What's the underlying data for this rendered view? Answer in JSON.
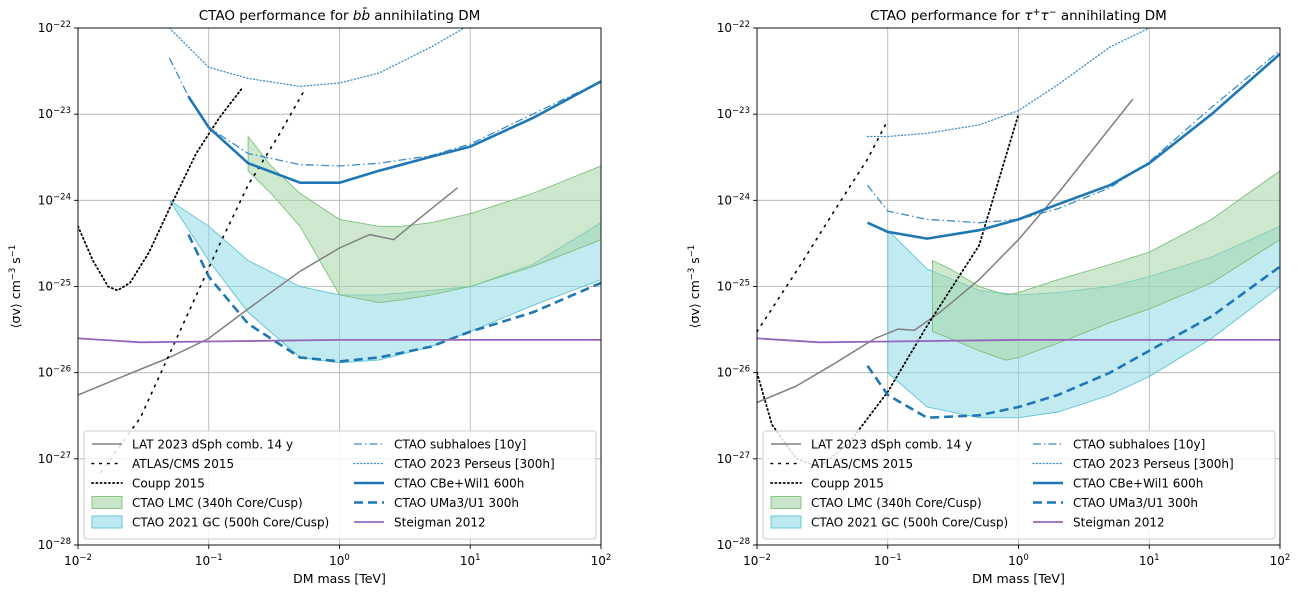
{
  "chart_data": [
    {
      "type": "line",
      "title_text": "CTAO performance for ",
      "title_particle": "b",
      "title_particle_bar": "b̄",
      "title_suffix": " annihilating DM",
      "xlabel": "DM mass [TeV]",
      "ylabel": "⟨σv⟩ cm",
      "ylabel_exp1": "−3",
      "ylabel_mid": " s",
      "ylabel_exp2": "−1",
      "x_scale": "log",
      "y_scale": "log",
      "xlim": [
        0.01,
        100
      ],
      "ylim": [
        1e-28,
        1e-22
      ],
      "x_ticks": [
        {
          "base": "10",
          "exp": "−2"
        },
        {
          "base": "10",
          "exp": "−1"
        },
        {
          "base": "10",
          "exp": "0"
        },
        {
          "base": "10",
          "exp": "1"
        },
        {
          "base": "10",
          "exp": "2"
        }
      ],
      "y_ticks": [
        {
          "base": "10",
          "exp": "−28"
        },
        {
          "base": "10",
          "exp": "−27"
        },
        {
          "base": "10",
          "exp": "−26"
        },
        {
          "base": "10",
          "exp": "−25"
        },
        {
          "base": "10",
          "exp": "−24"
        },
        {
          "base": "10",
          "exp": "−23"
        },
        {
          "base": "10",
          "exp": "−22"
        }
      ],
      "grid": true,
      "legend_position": "lower-left",
      "bands": [
        {
          "name": "CTAO 2021 GC (500h Core/Cusp)",
          "color": "#8fd8e6",
          "edge": "#5ec3d6",
          "x": [
            0.05,
            0.1,
            0.2,
            0.5,
            1,
            2,
            5,
            10,
            30,
            100
          ],
          "upper": [
            1e-24,
            5e-25,
            2e-25,
            1e-25,
            8e-26,
            8e-26,
            9e-26,
            1e-25,
            1.8e-25,
            5.5e-25
          ],
          "lower": [
            1e-24,
            2e-25,
            5e-26,
            1.5e-26,
            1.3e-26,
            1.4e-26,
            2e-26,
            3e-26,
            6e-26,
            1.2e-25
          ]
        },
        {
          "name": "CTAO LMC (340h Core/Cusp)",
          "color": "#a6d6a6",
          "edge": "#7cc07c",
          "x": [
            0.2,
            0.3,
            0.5,
            1,
            2,
            3,
            5,
            10,
            30,
            100
          ],
          "upper": [
            5.5e-24,
            2.5e-24,
            1.2e-24,
            6e-25,
            5e-25,
            5e-25,
            5.5e-25,
            7e-25,
            1.2e-24,
            2.5e-24
          ],
          "lower": [
            2.2e-24,
            1.2e-24,
            5e-25,
            8e-26,
            6.5e-26,
            7e-26,
            8e-26,
            1e-25,
            1.7e-25,
            3.5e-25
          ]
        }
      ],
      "series": [
        {
          "name": "LAT 2023 dSph comb. 14 y",
          "color": "#808080",
          "style": "solid",
          "width": 1.5,
          "x": [
            0.01,
            0.02,
            0.05,
            0.1,
            0.2,
            0.5,
            1,
            1.7,
            2.6,
            4,
            8
          ],
          "y": [
            5.5e-27,
            8.5e-27,
            1.5e-26,
            2.5e-26,
            5.5e-26,
            1.5e-25,
            2.8e-25,
            4e-25,
            3.5e-25,
            6e-25,
            1.4e-24
          ]
        },
        {
          "name": "ATLAS/CMS 2015",
          "color": "#000000",
          "style": "dotted",
          "width": 1.6,
          "x": [
            0.015,
            0.03,
            0.07,
            0.12,
            0.2,
            0.35,
            0.55
          ],
          "y": [
            7e-28,
            3e-27,
            5e-26,
            3e-25,
            1.5e-24,
            6e-24,
            2e-23
          ]
        },
        {
          "name": "Coupp 2015",
          "color": "#000000",
          "style": "densedot",
          "width": 1.8,
          "x": [
            0.01,
            0.013,
            0.017,
            0.02,
            0.025,
            0.035,
            0.05,
            0.08,
            0.12,
            0.18
          ],
          "y": [
            5e-25,
            2e-25,
            1e-25,
            9e-26,
            1.1e-25,
            2.5e-25,
            8e-25,
            3.5e-24,
            9e-24,
            2e-23
          ]
        },
        {
          "name": "CTAO subhaloes [10y]",
          "color": "#3a8cc8",
          "style": "dashdot",
          "width": 1.3,
          "x": [
            0.05,
            0.07,
            0.1,
            0.2,
            0.5,
            1,
            2,
            5,
            10,
            30,
            100
          ],
          "y": [
            4.5e-23,
            1.6e-23,
            7e-24,
            3.5e-24,
            2.6e-24,
            2.5e-24,
            2.7e-24,
            3.3e-24,
            4.5e-24,
            1e-23,
            2.4e-23
          ]
        },
        {
          "name": "CTAO 2023 Perseus [300h]",
          "color": "#3a8cc8",
          "style": "finedot",
          "width": 1.3,
          "x": [
            0.05,
            0.1,
            0.2,
            0.5,
            0.7,
            1,
            2,
            5,
            10
          ],
          "y": [
            1e-22,
            3.5e-23,
            2.6e-23,
            2.1e-23,
            2.2e-23,
            2.3e-23,
            3e-23,
            6e-23,
            1.1e-22
          ]
        },
        {
          "name": "CTAO CBe+Wil1 600h",
          "color": "#1f77b4",
          "style": "solid",
          "width": 2.6,
          "x": [
            0.07,
            0.1,
            0.2,
            0.5,
            1,
            2,
            5,
            10,
            30,
            100
          ],
          "y": [
            1.6e-23,
            7e-24,
            2.7e-24,
            1.6e-24,
            1.6e-24,
            2.2e-24,
            3.2e-24,
            4.2e-24,
            9e-24,
            2.4e-23
          ]
        },
        {
          "name": "CTAO UMa3/U1 300h",
          "color": "#1f77b4",
          "style": "dashed",
          "width": 2.6,
          "x": [
            0.07,
            0.1,
            0.2,
            0.5,
            1,
            2,
            5,
            10,
            30,
            100
          ],
          "y": [
            4e-25,
            1.3e-25,
            3.7e-26,
            1.5e-26,
            1.35e-26,
            1.5e-26,
            2e-26,
            3e-26,
            5e-26,
            1.1e-25
          ]
        },
        {
          "name": "Steigman 2012",
          "color": "#9467bd",
          "style": "solid",
          "width": 1.8,
          "x": [
            0.01,
            0.03,
            0.1,
            1,
            10,
            100
          ],
          "y": [
            2.5e-26,
            2.25e-26,
            2.3e-26,
            2.4e-26,
            2.4e-26,
            2.4e-26
          ]
        }
      ]
    },
    {
      "type": "line",
      "title_text": "CTAO performance for ",
      "title_particle": "τ",
      "title_particle_sup1": "+",
      "title_particle2": "τ",
      "title_particle_sup2": "−",
      "title_suffix": " annihilating DM",
      "xlabel": "DM mass [TeV]",
      "ylabel": "⟨σv⟩ cm",
      "ylabel_exp1": "−3",
      "ylabel_mid": " s",
      "ylabel_exp2": "−1",
      "x_scale": "log",
      "y_scale": "log",
      "xlim": [
        0.01,
        100
      ],
      "ylim": [
        1e-28,
        1e-22
      ],
      "x_ticks": [
        {
          "base": "10",
          "exp": "−2"
        },
        {
          "base": "10",
          "exp": "−1"
        },
        {
          "base": "10",
          "exp": "0"
        },
        {
          "base": "10",
          "exp": "1"
        },
        {
          "base": "10",
          "exp": "2"
        }
      ],
      "y_ticks": [
        {
          "base": "10",
          "exp": "−28"
        },
        {
          "base": "10",
          "exp": "−27"
        },
        {
          "base": "10",
          "exp": "−26"
        },
        {
          "base": "10",
          "exp": "−25"
        },
        {
          "base": "10",
          "exp": "−24"
        },
        {
          "base": "10",
          "exp": "−23"
        },
        {
          "base": "10",
          "exp": "−22"
        }
      ],
      "grid": true,
      "legend_position": "lower-left",
      "bands": [
        {
          "name": "CTAO 2021 GC (500h Core/Cusp)",
          "color": "#8fd8e6",
          "edge": "#5ec3d6",
          "x": [
            0.1,
            0.2,
            0.5,
            1,
            2,
            5,
            10,
            30,
            100
          ],
          "upper": [
            4.5e-25,
            1.6e-25,
            9e-26,
            8e-26,
            8.5e-26,
            1e-25,
            1.3e-25,
            2.2e-25,
            5e-25
          ],
          "lower": [
            1e-26,
            4e-27,
            3e-27,
            3e-27,
            3.5e-27,
            5.5e-27,
            9e-27,
            2.5e-26,
            1e-25
          ]
        },
        {
          "name": "CTAO LMC (340h Core/Cusp)",
          "color": "#a6d6a6",
          "edge": "#7cc07c",
          "x": [
            0.22,
            0.3,
            0.5,
            0.8,
            1,
            2,
            5,
            10,
            30,
            100
          ],
          "upper": [
            2e-25,
            1.6e-25,
            1e-25,
            8e-26,
            8.5e-26,
            1.2e-25,
            1.8e-25,
            2.5e-25,
            6e-25,
            2.2e-24
          ],
          "lower": [
            3e-26,
            2.5e-26,
            1.8e-26,
            1.4e-26,
            1.5e-26,
            2.2e-26,
            3.8e-26,
            5.5e-26,
            1.1e-25,
            3.5e-25
          ]
        }
      ],
      "series": [
        {
          "name": "LAT 2023 dSph comb. 14 y",
          "color": "#808080",
          "style": "solid",
          "width": 1.5,
          "x": [
            0.01,
            0.02,
            0.04,
            0.08,
            0.12,
            0.16,
            0.25,
            0.5,
            1,
            2,
            4,
            7.5
          ],
          "y": [
            4.5e-27,
            7e-27,
            1.3e-26,
            2.5e-26,
            3.2e-26,
            3.1e-26,
            5e-26,
            1.2e-25,
            3.5e-25,
            1.2e-24,
            4.5e-24,
            1.5e-23
          ]
        },
        {
          "name": "ATLAS/CMS 2015",
          "color": "#000000",
          "style": "dotted",
          "width": 1.6,
          "x": [
            0.01,
            0.02,
            0.04,
            0.07,
            0.1
          ],
          "y": [
            3e-26,
            1.5e-25,
            8e-25,
            3e-24,
            8.5e-24
          ]
        },
        {
          "name": "Coupp 2015",
          "color": "#000000",
          "style": "densedot",
          "width": 1.8,
          "x": [
            0.01,
            0.013,
            0.02,
            0.03,
            0.05,
            0.1,
            0.2,
            0.5,
            1
          ],
          "y": [
            1e-26,
            2.5e-27,
            1e-27,
            8e-28,
            1.5e-27,
            6e-27,
            3.5e-26,
            3e-25,
            1e-23
          ]
        },
        {
          "name": "CTAO subhaloes [10y]",
          "color": "#3a8cc8",
          "style": "dashdot",
          "width": 1.3,
          "x": [
            0.07,
            0.1,
            0.2,
            0.5,
            1,
            2,
            5,
            10,
            30,
            100
          ],
          "y": [
            1.5e-24,
            7.5e-25,
            6e-25,
            5.5e-25,
            6e-25,
            8e-25,
            1.4e-24,
            2.8e-24,
            1.2e-23,
            5.5e-23
          ]
        },
        {
          "name": "CTAO 2023 Perseus [300h]",
          "color": "#3a8cc8",
          "style": "finedot",
          "width": 1.3,
          "x": [
            0.07,
            0.1,
            0.2,
            0.5,
            1,
            2,
            5,
            10
          ],
          "y": [
            5.5e-24,
            5.5e-24,
            6e-24,
            7.5e-24,
            1.1e-23,
            2.2e-23,
            6e-23,
            1e-22
          ]
        },
        {
          "name": "CTAO CBe+Wil1 600h",
          "color": "#1f77b4",
          "style": "solid",
          "width": 2.6,
          "x": [
            0.07,
            0.1,
            0.2,
            0.5,
            1,
            2,
            5,
            10,
            30,
            100
          ],
          "y": [
            5.5e-25,
            4.3e-25,
            3.6e-25,
            4.5e-25,
            6e-25,
            9e-25,
            1.5e-24,
            2.7e-24,
            1e-23,
            5e-23
          ]
        },
        {
          "name": "CTAO UMa3/U1 300h",
          "color": "#1f77b4",
          "style": "dashed",
          "width": 2.6,
          "x": [
            0.07,
            0.1,
            0.2,
            0.5,
            1,
            2,
            5,
            10,
            30,
            100
          ],
          "y": [
            1.2e-26,
            5.5e-27,
            3e-27,
            3.2e-27,
            4e-27,
            5.5e-27,
            1e-26,
            1.8e-26,
            4.5e-26,
            1.7e-25
          ]
        },
        {
          "name": "Steigman 2012",
          "color": "#9467bd",
          "style": "solid",
          "width": 1.8,
          "x": [
            0.01,
            0.03,
            0.1,
            1,
            10,
            100
          ],
          "y": [
            2.5e-26,
            2.25e-26,
            2.3e-26,
            2.4e-26,
            2.4e-26,
            2.4e-26
          ]
        }
      ]
    }
  ]
}
